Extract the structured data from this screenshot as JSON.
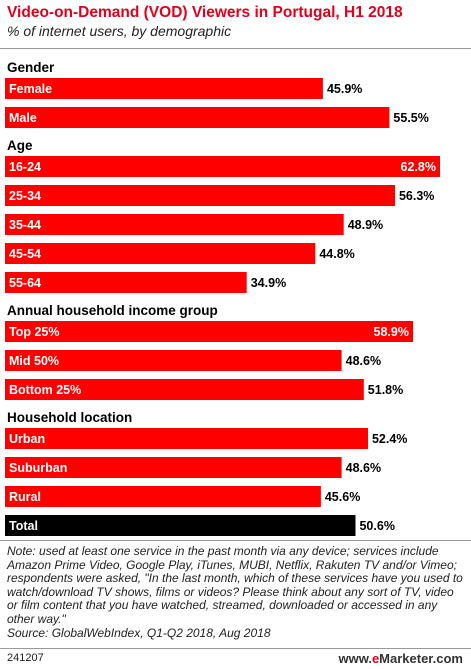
{
  "header": {
    "title": "Video-on-Demand (VOD) Viewers in Portugal, H1 2018",
    "subtitle": "% of internet users, by demographic"
  },
  "chart_data": {
    "type": "bar",
    "orientation": "horizontal",
    "title": "Video-on-Demand (VOD) Viewers in Portugal, H1 2018",
    "subtitle": "% of internet users, by demographic",
    "value_suffix": "%",
    "xlim": [
      0,
      62.8
    ],
    "colors": {
      "bar": "#ff0000",
      "total_bar": "#000000",
      "label_inside": "#ffffff",
      "value_label": "#000000"
    },
    "groups": [
      {
        "name": "Gender",
        "items": [
          {
            "label": "Female",
            "value": 45.9,
            "display": "45.9%"
          },
          {
            "label": "Male",
            "value": 55.5,
            "display": "55.5%"
          }
        ]
      },
      {
        "name": "Age",
        "items": [
          {
            "label": "16-24",
            "value": 62.8,
            "display": "62.8%"
          },
          {
            "label": "25-34",
            "value": 56.3,
            "display": "56.3%"
          },
          {
            "label": "35-44",
            "value": 48.9,
            "display": "48.9%"
          },
          {
            "label": "45-54",
            "value": 44.8,
            "display": "44.8%"
          },
          {
            "label": "55-64",
            "value": 34.9,
            "display": "34.9%"
          }
        ]
      },
      {
        "name": "Annual household income group",
        "items": [
          {
            "label": "Top 25%",
            "value": 58.9,
            "display": "58.9%"
          },
          {
            "label": "Mid 50%",
            "value": 48.6,
            "display": "48.6%"
          },
          {
            "label": "Bottom 25%",
            "value": 51.8,
            "display": "51.8%"
          }
        ]
      },
      {
        "name": "Household location",
        "items": [
          {
            "label": "Urban",
            "value": 52.4,
            "display": "52.4%"
          },
          {
            "label": "Suburban",
            "value": 48.6,
            "display": "48.6%"
          },
          {
            "label": "Rural",
            "value": 45.6,
            "display": "45.6%"
          }
        ]
      }
    ],
    "total": {
      "label": "Total",
      "value": 50.6,
      "display": "50.6%"
    }
  },
  "footer": {
    "note": "Note: used at least one service in the past month via any device; services include Amazon Prime Video, Google Play, iTunes, MUBI, Netflix, Rakuten TV and/or Vimeo; respondents were asked, \"In the last month, which of these services have you used to watch/download TV shows, films or videos? Please think about any sort of TV, video or film content that you have watched, streamed, downloaded or accessed in any other way.\"",
    "source": "Source: GlobalWebIndex, Q1-Q2 2018, Aug 2018",
    "chart_id": "241207",
    "brand_prefix": "www.",
    "brand_e": "e",
    "brand_suffix": "Marketer.com"
  }
}
